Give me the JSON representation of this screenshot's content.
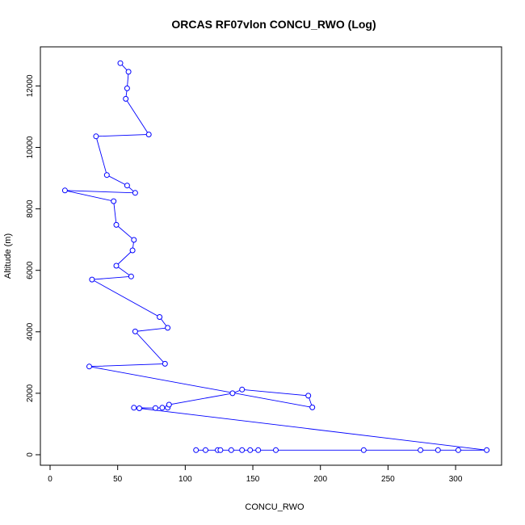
{
  "chart_data": {
    "type": "line",
    "title": "ORCAS RF07vlon CONCU_RWO (Log)",
    "xlabel": "CONCU_RWO",
    "ylabel": "Altitude (m)",
    "xlim": [
      0,
      330
    ],
    "ylim": [
      0,
      12700
    ],
    "x_ticks": [
      0,
      50,
      100,
      150,
      200,
      250,
      300
    ],
    "y_ticks": [
      0,
      2000,
      4000,
      6000,
      8000,
      10000,
      12000
    ],
    "grid": false,
    "legend": "none",
    "series_color": "#0000ff",
    "points": [
      [
        108,
        150
      ],
      [
        115,
        150
      ],
      [
        124,
        150
      ],
      [
        126,
        150
      ],
      [
        134,
        150
      ],
      [
        142,
        150
      ],
      [
        148,
        150
      ],
      [
        154,
        150
      ],
      [
        167,
        150
      ],
      [
        232,
        150
      ],
      [
        274,
        150
      ],
      [
        287,
        150
      ],
      [
        302,
        150
      ],
      [
        323,
        150
      ],
      [
        66,
        1510
      ],
      [
        62,
        1530
      ],
      [
        78,
        1520
      ],
      [
        83,
        1530
      ],
      [
        87,
        1530
      ],
      [
        88,
        1630
      ],
      [
        135,
        2000
      ],
      [
        142,
        2120
      ],
      [
        191,
        1920
      ],
      [
        194,
        1540
      ],
      [
        29,
        2870
      ],
      [
        85,
        2960
      ],
      [
        63,
        4010
      ],
      [
        87,
        4130
      ],
      [
        81,
        4480
      ],
      [
        31,
        5700
      ],
      [
        60,
        5800
      ],
      [
        49,
        6150
      ],
      [
        61,
        6650
      ],
      [
        62,
        6990
      ],
      [
        49,
        7480
      ],
      [
        47,
        8250
      ],
      [
        11,
        8600
      ],
      [
        63,
        8520
      ],
      [
        57,
        8760
      ],
      [
        42,
        9100
      ],
      [
        34,
        10360
      ],
      [
        73,
        10420
      ],
      [
        56,
        11580
      ],
      [
        57,
        11920
      ],
      [
        58,
        12460
      ],
      [
        52,
        12740
      ]
    ]
  }
}
